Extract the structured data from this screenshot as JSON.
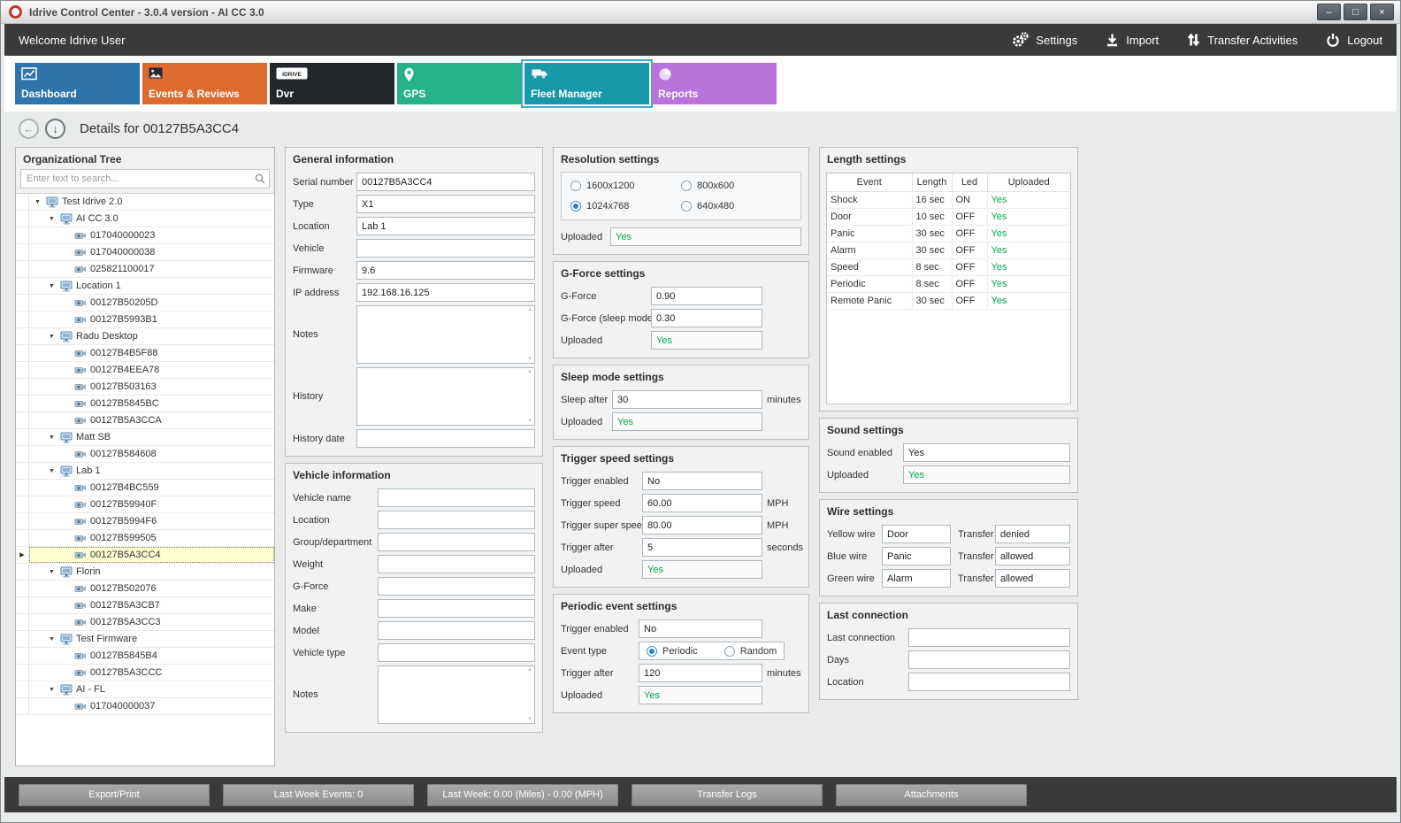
{
  "window": {
    "title": "Idrive Control Center - 3.0.4 version - AI CC 3.0"
  },
  "glyphs": {
    "minimize": "–",
    "maximize": "□",
    "close": "×",
    "expander": "▼",
    "row_indicator": "▶",
    "back_arrow": "←",
    "down_arrow": "↓"
  },
  "colors": {
    "status_green": "#00a651",
    "topbar": "#3a3a3a",
    "tab_dashboard": "#2e73a9",
    "tab_events": "#dd6b2f",
    "tab_dvr": "#23272b",
    "tab_gps": "#26b289",
    "tab_fleet": "#1899a8",
    "tab_reports": "#b873dd"
  },
  "header": {
    "welcome": "Welcome Idrive User",
    "actions": [
      {
        "id": "settings",
        "label": "Settings",
        "icon": "gears"
      },
      {
        "id": "import",
        "label": "Import",
        "icon": "import"
      },
      {
        "id": "transfer-activities",
        "label": "Transfer Activities",
        "icon": "transfer"
      },
      {
        "id": "logout",
        "label": "Logout",
        "icon": "power"
      }
    ]
  },
  "tabs": [
    {
      "id": "dashboard",
      "label": "Dashboard",
      "color": "#2e73a9",
      "icon": "chart",
      "active": false
    },
    {
      "id": "events-reviews",
      "label": "Events & Reviews",
      "color": "#dd6b2f",
      "icon": "photo",
      "active": false
    },
    {
      "id": "dvr",
      "label": "Dvr",
      "color": "#23272b",
      "icon": "dvrlogo",
      "active": false
    },
    {
      "id": "gps",
      "label": "GPS",
      "color": "#26b289",
      "icon": "pin",
      "active": false
    },
    {
      "id": "fleet-manager",
      "label": "Fleet Manager",
      "color": "#1899a8",
      "icon": "truck",
      "active": true
    },
    {
      "id": "reports",
      "label": "Reports",
      "color": "#b873dd",
      "icon": "pie",
      "active": false
    }
  ],
  "details": {
    "title": "Details for 00127B5A3CC4"
  },
  "org_tree": {
    "title": "Organizational Tree",
    "search_placeholder": "Enter text to search...",
    "items": [
      {
        "label": "Test Idrive 2.0",
        "level": 0,
        "type": "group"
      },
      {
        "label": "AI CC 3.0",
        "level": 1,
        "type": "group"
      },
      {
        "label": "017040000023",
        "level": 2,
        "type": "device"
      },
      {
        "label": "017040000038",
        "level": 2,
        "type": "device"
      },
      {
        "label": "025821100017",
        "level": 2,
        "type": "device"
      },
      {
        "label": "Location 1",
        "level": 1,
        "type": "group"
      },
      {
        "label": "00127B50205D",
        "level": 2,
        "type": "device"
      },
      {
        "label": "00127B5993B1",
        "level": 2,
        "type": "device"
      },
      {
        "label": "Radu Desktop",
        "level": 1,
        "type": "group"
      },
      {
        "label": "00127B4B5F88",
        "level": 2,
        "type": "device"
      },
      {
        "label": "00127B4EEA78",
        "level": 2,
        "type": "device"
      },
      {
        "label": "00127B503163",
        "level": 2,
        "type": "device"
      },
      {
        "label": "00127B5845BC",
        "level": 2,
        "type": "device"
      },
      {
        "label": "00127B5A3CCA",
        "level": 2,
        "type": "device"
      },
      {
        "label": "Matt SB",
        "level": 1,
        "type": "group"
      },
      {
        "label": "00127B584608",
        "level": 2,
        "type": "device"
      },
      {
        "label": "Lab 1",
        "level": 1,
        "type": "group"
      },
      {
        "label": "00127B4BC559",
        "level": 2,
        "type": "device"
      },
      {
        "label": "00127B59940F",
        "level": 2,
        "type": "device"
      },
      {
        "label": "00127B5994F6",
        "level": 2,
        "type": "device"
      },
      {
        "label": "00127B599505",
        "level": 2,
        "type": "device"
      },
      {
        "label": "00127B5A3CC4",
        "level": 2,
        "type": "device",
        "selected": true
      },
      {
        "label": "Florin",
        "level": 1,
        "type": "group"
      },
      {
        "label": "00127B502076",
        "level": 2,
        "type": "device"
      },
      {
        "label": "00127B5A3CB7",
        "level": 2,
        "type": "device"
      },
      {
        "label": "00127B5A3CC3",
        "level": 2,
        "type": "device"
      },
      {
        "label": "Test Firmware",
        "level": 1,
        "type": "group"
      },
      {
        "label": "00127B5845B4",
        "level": 2,
        "type": "device"
      },
      {
        "label": "00127B5A3CCC",
        "level": 2,
        "type": "device"
      },
      {
        "label": "AI - FL",
        "level": 1,
        "type": "group"
      },
      {
        "label": "017040000037",
        "level": 2,
        "type": "device"
      }
    ]
  },
  "general_information": {
    "title": "General information",
    "fields": [
      {
        "label": "Serial number",
        "value": "00127B5A3CC4"
      },
      {
        "label": "Type",
        "value": "X1"
      },
      {
        "label": "Location",
        "value": "Lab 1"
      },
      {
        "label": "Vehicle",
        "value": ""
      },
      {
        "label": "Firmware",
        "value": "9.6"
      },
      {
        "label": "IP address",
        "value": "192.168.16.125"
      },
      {
        "label": "Notes",
        "value": "",
        "multiline": true
      },
      {
        "label": "History",
        "value": "",
        "multiline": true
      },
      {
        "label": "History date",
        "value": ""
      }
    ]
  },
  "vehicle_information": {
    "title": "Vehicle information",
    "fields": [
      {
        "label": "Vehicle name",
        "value": ""
      },
      {
        "label": "Location",
        "value": ""
      },
      {
        "label": "Group/department",
        "value": ""
      },
      {
        "label": "Weight",
        "value": ""
      },
      {
        "label": "G-Force",
        "value": ""
      },
      {
        "label": "Make",
        "value": ""
      },
      {
        "label": "Model",
        "value": ""
      },
      {
        "label": "Vehicle type",
        "value": ""
      },
      {
        "label": "Notes",
        "value": "",
        "multiline": true
      }
    ]
  },
  "resolution_settings": {
    "title": "Resolution settings",
    "options": [
      {
        "label": "1600x1200",
        "checked": false
      },
      {
        "label": "800x600",
        "checked": false
      },
      {
        "label": "1024x768",
        "checked": true
      },
      {
        "label": "640x480",
        "checked": false
      }
    ],
    "uploaded_label": "Uploaded",
    "uploaded_value": "Yes"
  },
  "gforce_settings": {
    "title": "G-Force settings",
    "fields": [
      {
        "label": "G-Force",
        "value": "0.90"
      },
      {
        "label": "G-Force (sleep mode)",
        "value": "0.30"
      },
      {
        "label": "Uploaded",
        "value": "Yes",
        "status": true
      }
    ]
  },
  "sleep_settings": {
    "title": "Sleep mode settings",
    "fields": [
      {
        "label": "Sleep after",
        "value": "30",
        "suffix": "minutes"
      },
      {
        "label": "Uploaded",
        "value": "Yes",
        "status": true
      }
    ]
  },
  "trigger_speed_settings": {
    "title": "Trigger speed settings",
    "fields": [
      {
        "label": "Trigger enabled",
        "value": "No"
      },
      {
        "label": "Trigger speed",
        "value": "60.00",
        "suffix": "MPH"
      },
      {
        "label": "Trigger super speed",
        "value": "80.00",
        "suffix": "MPH"
      },
      {
        "label": "Trigger after",
        "value": "5",
        "suffix": "seconds"
      },
      {
        "label": "Uploaded",
        "value": "Yes",
        "status": true
      }
    ]
  },
  "periodic_event_settings": {
    "title": "Periodic event settings",
    "fields": [
      {
        "label": "Trigger enabled",
        "value": "No"
      }
    ],
    "event_type_label": "Event type",
    "event_type_options": [
      {
        "label": "Periodic",
        "checked": true
      },
      {
        "label": "Random",
        "checked": false
      }
    ],
    "fields2": [
      {
        "label": "Trigger after",
        "value": "120",
        "suffix": "minutes"
      },
      {
        "label": "Uploaded",
        "value": "Yes",
        "status": true
      }
    ]
  },
  "length_settings": {
    "title": "Length settings",
    "columns": [
      "Event",
      "Length",
      "Led",
      "Uploaded"
    ],
    "rows": [
      [
        "Shock",
        "16 sec",
        "ON",
        "Yes"
      ],
      [
        "Door",
        "10 sec",
        "OFF",
        "Yes"
      ],
      [
        "Panic",
        "30 sec",
        "OFF",
        "Yes"
      ],
      [
        "Alarm",
        "30 sec",
        "OFF",
        "Yes"
      ],
      [
        "Speed",
        "8 sec",
        "OFF",
        "Yes"
      ],
      [
        "Periodic",
        "8 sec",
        "OFF",
        "Yes"
      ],
      [
        "Remote Panic",
        "30 sec",
        "OFF",
        "Yes"
      ]
    ]
  },
  "sound_settings": {
    "title": "Sound settings",
    "fields": [
      {
        "label": "Sound enabled",
        "value": "Yes"
      },
      {
        "label": "Uploaded",
        "value": "Yes",
        "status": true
      }
    ]
  },
  "wire_settings": {
    "title": "Wire settings",
    "rows": [
      {
        "label": "Yellow wire",
        "value": "Door",
        "transfer_label": "Transfer",
        "transfer_value": "denied"
      },
      {
        "label": "Blue wire",
        "value": "Panic",
        "transfer_label": "Transfer",
        "transfer_value": "allowed"
      },
      {
        "label": "Green wire",
        "value": "Alarm",
        "transfer_label": "Transfer",
        "transfer_value": "allowed"
      }
    ]
  },
  "last_connection": {
    "title": "Last connection",
    "fields": [
      {
        "label": "Last connection",
        "value": ""
      },
      {
        "label": "Days",
        "value": ""
      },
      {
        "label": "Location",
        "value": ""
      }
    ]
  },
  "footer": {
    "buttons": [
      {
        "id": "export-print",
        "label": "Export/Print"
      },
      {
        "id": "last-week-events",
        "label": "Last Week Events: 0"
      },
      {
        "id": "last-week-miles",
        "label": "Last Week: 0.00 (Miles) - 0.00 (MPH)"
      },
      {
        "id": "transfer-logs",
        "label": "Transfer Logs"
      },
      {
        "id": "attachments",
        "label": "Attachments"
      }
    ]
  }
}
